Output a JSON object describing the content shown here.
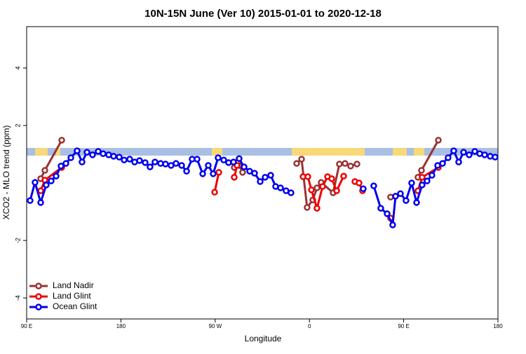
{
  "chart_data": {
    "type": "line",
    "title": "10N-15N June (Ver 10)   2015-01-01 to 2020-12-18",
    "x_label": "Longitude",
    "y_label": "XCO2 - MLO trend (ppm)",
    "xlim": [
      90,
      540
    ],
    "xticks": [
      {
        "value": 90,
        "label": "90 E"
      },
      {
        "value": 180,
        "label": "180"
      },
      {
        "value": 270,
        "label": "90 W"
      },
      {
        "value": 360,
        "label": "0"
      },
      {
        "value": 450,
        "label": "90 E"
      },
      {
        "value": 540,
        "label": "180"
      }
    ],
    "ylim": [
      -4.73,
      5.44
    ],
    "yticks": [
      -4,
      -2,
      2,
      4
    ],
    "legend": "bottom-left",
    "series": [
      {
        "name": "Land Nadir",
        "color": "#993333",
        "x": [
          103.4,
          107.4,
          123.5,
          null,
          288.2,
          292.9,
          296.2,
          null,
          347.8,
          352.5,
          357.8,
          363.2,
          367.2,
          371.2,
          382.6,
          388.6,
          394,
          399.3,
          405.4,
          null,
          437.5,
          null,
          463.6,
          467,
          483.1
        ],
        "values": [
          0.15,
          0.44,
          1.49,
          null,
          0.54,
          0.61,
          0.37,
          null,
          0.68,
          0.83,
          -0.85,
          -0.59,
          -0.17,
          0.02,
          -0.34,
          0.66,
          0.68,
          0.59,
          0.66,
          null,
          -0.49,
          null,
          0.2,
          0.44,
          1.49
        ]
      },
      {
        "name": "Land Glint",
        "color": "#ee0000",
        "x": [
          103.4,
          107.4,
          123.5,
          null,
          269.5,
          273.5,
          null,
          288.2,
          290.9,
          null,
          353.9,
          358.5,
          361.9,
          367.2,
          372.6,
          377.3,
          381.3,
          386,
          392.7,
          null,
          403.4,
          407.4,
          410.7,
          null,
          437.5,
          null,
          463.6,
          467.6,
          483.1
        ],
        "values": [
          -0.27,
          0.1,
          0.54,
          null,
          -0.32,
          0.37,
          null,
          0.2,
          0.61,
          null,
          0.22,
          0.22,
          -0.24,
          -0.88,
          -0.12,
          0.22,
          0.15,
          -0.27,
          0.24,
          null,
          0.05,
          0,
          -0.27,
          null,
          -1.22,
          null,
          -0.27,
          0.2,
          0.54
        ]
      },
      {
        "name": "Ocean Glint",
        "color": "#0000ee",
        "x": [
          93.3,
          98,
          103.4,
          108.7,
          113.4,
          118.1,
          122.8,
          127.5,
          132.2,
          138.2,
          142.9,
          147.6,
          152.9,
          158.3,
          163,
          168.3,
          173,
          178.4,
          183.1,
          188.4,
          193.1,
          197.8,
          203.2,
          207.8,
          212.5,
          217.9,
          222.6,
          227.9,
          232.6,
          238,
          242.7,
          248,
          252.7,
          258.1,
          263.4,
          268.1,
          272.8,
          278.2,
          282.8,
          287.5,
          292.9,
          297.6,
          302.9,
          307.6,
          313,
          317.7,
          323,
          327.7,
          332.4,
          337.7,
          342.4,
          null,
          411.4,
          null,
          421.4,
          428.1,
          434.2,
          439.5,
          442.2,
          446.9,
          452.2,
          457.6,
          462.3,
          467.6,
          472.3,
          477,
          482.4,
          487.1,
          492.4,
          497.8,
          502.5,
          507.2,
          512.5,
          517.9,
          522.6,
          527.3,
          532.6,
          537.3
        ],
        "values": [
          -0.61,
          0.02,
          -0.68,
          -0.07,
          0.07,
          0.24,
          0.59,
          0.68,
          0.88,
          1.12,
          0.73,
          1.07,
          0.98,
          1.1,
          1.02,
          0.98,
          0.93,
          0.9,
          0.8,
          0.83,
          0.73,
          0.78,
          0.71,
          0.56,
          0.73,
          0.68,
          0.66,
          0.61,
          0.68,
          0.61,
          0.41,
          0.83,
          0.83,
          0.32,
          0.61,
          0.32,
          0.88,
          0.8,
          0.71,
          0.73,
          0.85,
          0.56,
          0.41,
          0.34,
          0.05,
          0.2,
          0.27,
          -0.12,
          -0.17,
          -0.27,
          -0.34,
          null,
          -0.2,
          null,
          -0.1,
          -0.88,
          -1.07,
          -1.46,
          -0.46,
          -0.37,
          -0.61,
          0,
          -0.68,
          -0.07,
          0.07,
          0.27,
          0.61,
          0.68,
          0.88,
          1.12,
          0.73,
          1.07,
          0.98,
          1.1,
          1.02,
          0.98,
          0.93,
          0.9
        ]
      }
    ]
  }
}
